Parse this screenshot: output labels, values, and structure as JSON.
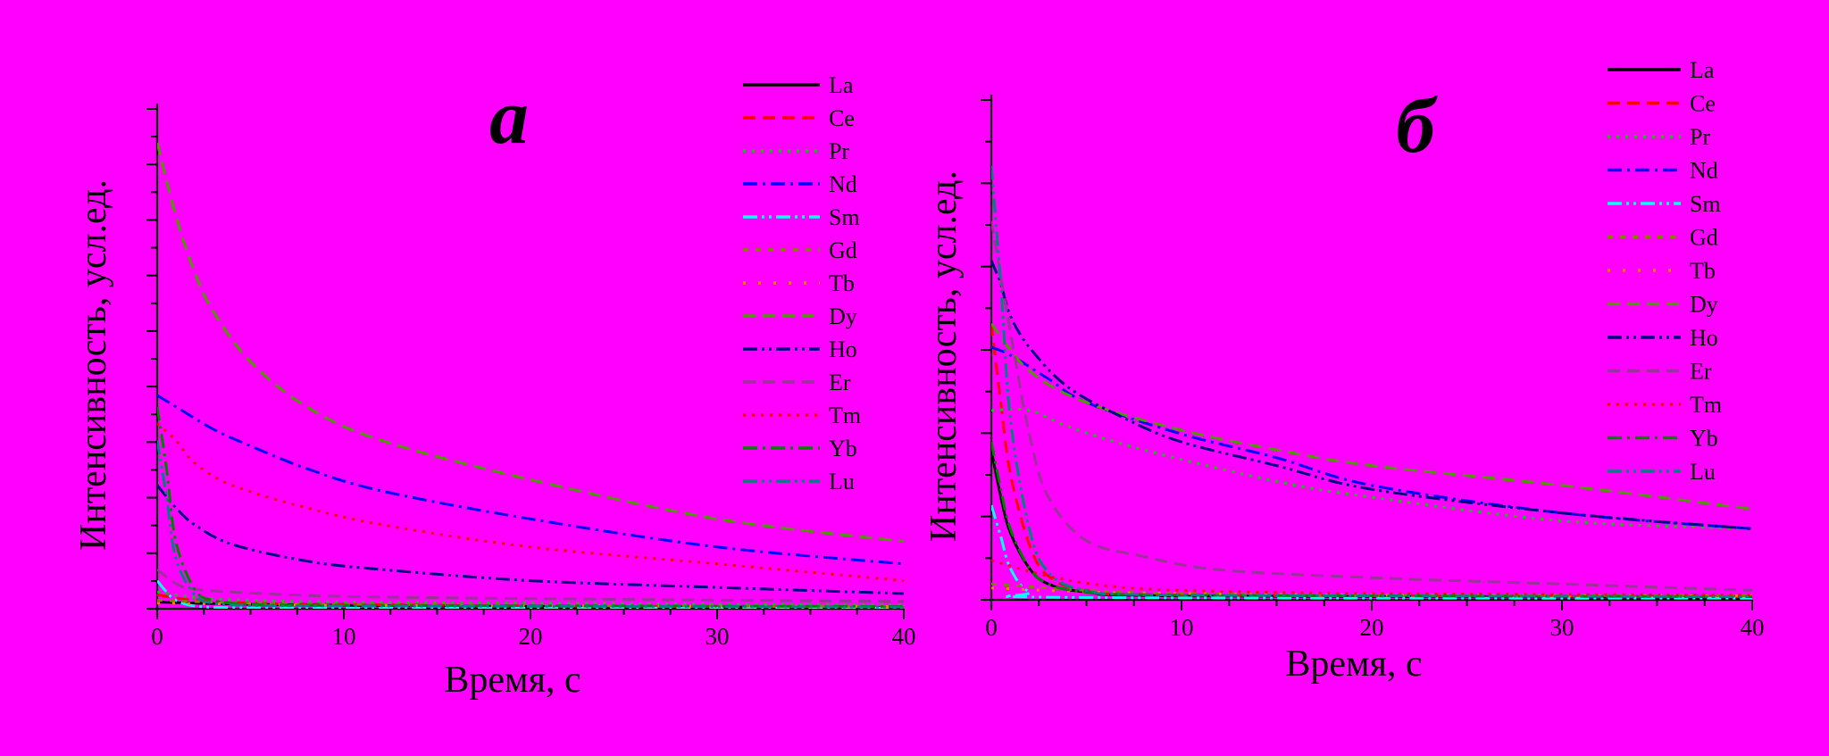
{
  "chart_data": [
    {
      "type": "line",
      "panel_label": "а",
      "xlabel": "Время, с",
      "ylabel": "Интенсивность, усл.ед.",
      "xlim": [
        0,
        40
      ],
      "ylim": [
        0,
        9
      ],
      "xticks": [
        0,
        10,
        20,
        30,
        40
      ],
      "y_major_count": 9,
      "legend_position": "right",
      "series": [
        {
          "name": "La",
          "color": "#000000",
          "dash": "solid",
          "values": [
            [
              0,
              0.12
            ],
            [
              2,
              0.1
            ],
            [
              5,
              0.08
            ],
            [
              10,
              0.06
            ],
            [
              20,
              0.04
            ],
            [
              30,
              0.03
            ],
            [
              40,
              0.02
            ]
          ]
        },
        {
          "name": "Ce",
          "color": "#FF0000",
          "dash": "dash",
          "values": [
            [
              0,
              0.25
            ],
            [
              2,
              0.15
            ],
            [
              5,
              0.1
            ],
            [
              10,
              0.08
            ],
            [
              20,
              0.05
            ],
            [
              30,
              0.04
            ],
            [
              40,
              0.03
            ]
          ]
        },
        {
          "name": "Pr",
          "color": "#00CC00",
          "dash": "dot",
          "values": [
            [
              0,
              0.3
            ],
            [
              2,
              0.2
            ],
            [
              5,
              0.15
            ],
            [
              10,
              0.12
            ],
            [
              20,
              0.1
            ],
            [
              30,
              0.08
            ],
            [
              40,
              0.06
            ]
          ]
        },
        {
          "name": "Nd",
          "color": "#0000FF",
          "dash": "dashdot",
          "values": [
            [
              0,
              3.8
            ],
            [
              1,
              3.6
            ],
            [
              3,
              3.2
            ],
            [
              5,
              2.9
            ],
            [
              8,
              2.5
            ],
            [
              12,
              2.1
            ],
            [
              20,
              1.6
            ],
            [
              30,
              1.1
            ],
            [
              40,
              0.8
            ]
          ]
        },
        {
          "name": "Sm",
          "color": "#00FFFF",
          "dash": "dashdotdot",
          "values": [
            [
              0,
              0.5
            ],
            [
              0.5,
              0.3
            ],
            [
              1,
              0.15
            ],
            [
              2,
              0.05
            ],
            [
              4,
              0.02
            ],
            [
              10,
              0.01
            ],
            [
              40,
              0.01
            ]
          ]
        },
        {
          "name": "Gd",
          "color": "#808000",
          "dash": "shortdash",
          "values": [
            [
              0,
              0.15
            ],
            [
              5,
              0.1
            ],
            [
              10,
              0.08
            ],
            [
              20,
              0.06
            ],
            [
              40,
              0.04
            ]
          ]
        },
        {
          "name": "Tb",
          "color": "#FF8000",
          "dash": "sparsedot",
          "values": [
            [
              0,
              0.1
            ],
            [
              5,
              0.08
            ],
            [
              10,
              0.06
            ],
            [
              20,
              0.05
            ],
            [
              40,
              0.04
            ]
          ]
        },
        {
          "name": "Dy",
          "color": "#4C9900",
          "dash": "dash",
          "values": [
            [
              0,
              8.3
            ],
            [
              1,
              7.0
            ],
            [
              2,
              6.0
            ],
            [
              3,
              5.3
            ],
            [
              5,
              4.4
            ],
            [
              8,
              3.6
            ],
            [
              12,
              3.0
            ],
            [
              20,
              2.3
            ],
            [
              30,
              1.6
            ],
            [
              40,
              1.2
            ]
          ]
        },
        {
          "name": "Ho",
          "color": "#000080",
          "dash": "dashdotdot",
          "values": [
            [
              0,
              2.2
            ],
            [
              1,
              1.8
            ],
            [
              2,
              1.5
            ],
            [
              4,
              1.15
            ],
            [
              8,
              0.85
            ],
            [
              12,
              0.7
            ],
            [
              20,
              0.5
            ],
            [
              30,
              0.38
            ],
            [
              40,
              0.27
            ]
          ]
        },
        {
          "name": "Er",
          "color": "#993399",
          "dash": "dash",
          "values": [
            [
              0,
              0.7
            ],
            [
              1,
              0.45
            ],
            [
              2,
              0.35
            ],
            [
              5,
              0.28
            ],
            [
              10,
              0.22
            ],
            [
              20,
              0.18
            ],
            [
              40,
              0.13
            ]
          ]
        },
        {
          "name": "Tm",
          "color": "#FF0000",
          "dash": "dot",
          "values": [
            [
              0,
              3.3
            ],
            [
              1,
              3.0
            ],
            [
              2,
              2.6
            ],
            [
              4,
              2.2
            ],
            [
              8,
              1.8
            ],
            [
              12,
              1.5
            ],
            [
              20,
              1.1
            ],
            [
              30,
              0.8
            ],
            [
              40,
              0.5
            ]
          ]
        },
        {
          "name": "Yb",
          "color": "#008000",
          "dash": "dashdot",
          "values": [
            [
              0,
              3.6
            ],
            [
              0.5,
              2.5
            ],
            [
              1,
              1.2
            ],
            [
              2,
              0.35
            ],
            [
              3,
              0.15
            ],
            [
              5,
              0.08
            ],
            [
              10,
              0.06
            ],
            [
              40,
              0.04
            ]
          ]
        },
        {
          "name": "Lu",
          "color": "#008080",
          "dash": "dashdotdot",
          "values": [
            [
              0,
              3.0
            ],
            [
              0.5,
              2.0
            ],
            [
              1,
              0.9
            ],
            [
              2,
              0.25
            ],
            [
              3,
              0.1
            ],
            [
              5,
              0.06
            ],
            [
              10,
              0.05
            ],
            [
              40,
              0.03
            ]
          ]
        }
      ]
    },
    {
      "type": "line",
      "panel_label": "б",
      "xlabel": "Время, с",
      "ylabel": "Интенсивность, усл.ед.",
      "xlim": [
        0,
        40
      ],
      "ylim": [
        0,
        6.4
      ],
      "xticks": [
        0,
        10,
        20,
        30,
        40
      ],
      "y_major_count": 6,
      "legend_position": "right",
      "series": [
        {
          "name": "La",
          "color": "#000000",
          "dash": "solid",
          "values": [
            [
              0,
              1.9
            ],
            [
              0.5,
              1.3
            ],
            [
              1,
              0.85
            ],
            [
              2,
              0.4
            ],
            [
              3,
              0.2
            ],
            [
              5,
              0.1
            ],
            [
              10,
              0.05
            ],
            [
              40,
              0.03
            ]
          ]
        },
        {
          "name": "Ce",
          "color": "#FF0000",
          "dash": "dash",
          "values": [
            [
              0,
              3.5
            ],
            [
              0.5,
              2.5
            ],
            [
              1,
              1.6
            ],
            [
              2,
              0.7
            ],
            [
              3,
              0.3
            ],
            [
              5,
              0.12
            ],
            [
              10,
              0.06
            ],
            [
              40,
              0.04
            ]
          ]
        },
        {
          "name": "Pr",
          "color": "#00CC00",
          "dash": "dot",
          "values": [
            [
              0,
              2.4
            ],
            [
              2,
              2.4
            ],
            [
              4,
              2.2
            ],
            [
              8,
              1.9
            ],
            [
              15,
              1.5
            ],
            [
              20,
              1.3
            ],
            [
              30,
              1.0
            ],
            [
              40,
              0.9
            ]
          ]
        },
        {
          "name": "Nd",
          "color": "#0000FF",
          "dash": "dashdot",
          "values": [
            [
              0,
              3.2
            ],
            [
              1,
              3.1
            ],
            [
              3,
              2.8
            ],
            [
              5,
              2.5
            ],
            [
              10,
              2.1
            ],
            [
              15,
              1.8
            ],
            [
              20,
              1.45
            ],
            [
              30,
              1.1
            ],
            [
              40,
              0.9
            ]
          ]
        },
        {
          "name": "Sm",
          "color": "#00FFFF",
          "dash": "dashdotdot",
          "values": [
            [
              0,
              1.2
            ],
            [
              0.5,
              0.8
            ],
            [
              1,
              0.4
            ],
            [
              2,
              0.1
            ],
            [
              4,
              0.03
            ],
            [
              40,
              0.02
            ]
          ]
        },
        {
          "name": "Gd",
          "color": "#808000",
          "dash": "shortdash",
          "values": [
            [
              0,
              0.2
            ],
            [
              5,
              0.12
            ],
            [
              10,
              0.08
            ],
            [
              20,
              0.06
            ],
            [
              40,
              0.05
            ]
          ]
        },
        {
          "name": "Tb",
          "color": "#FF8000",
          "dash": "sparsedot",
          "values": [
            [
              0,
              0.15
            ],
            [
              5,
              0.1
            ],
            [
              10,
              0.08
            ],
            [
              20,
              0.06
            ],
            [
              40,
              0.05
            ]
          ]
        },
        {
          "name": "Dy",
          "color": "#4C9900",
          "dash": "dash",
          "values": [
            [
              0,
              3.5
            ],
            [
              2,
              2.9
            ],
            [
              5,
              2.5
            ],
            [
              10,
              2.15
            ],
            [
              15,
              1.9
            ],
            [
              20,
              1.7
            ],
            [
              30,
              1.45
            ],
            [
              40,
              1.15
            ]
          ]
        },
        {
          "name": "Ho",
          "color": "#000080",
          "dash": "dashdotdot",
          "values": [
            [
              0,
              4.3
            ],
            [
              0.5,
              4.0
            ],
            [
              1,
              3.6
            ],
            [
              2,
              3.2
            ],
            [
              4,
              2.7
            ],
            [
              7,
              2.3
            ],
            [
              10,
              2.0
            ],
            [
              15,
              1.7
            ],
            [
              20,
              1.4
            ],
            [
              30,
              1.1
            ],
            [
              40,
              0.9
            ]
          ]
        },
        {
          "name": "Er",
          "color": "#993399",
          "dash": "dash",
          "values": [
            [
              0,
              4.8
            ],
            [
              1,
              3.4
            ],
            [
              2,
              2.1
            ],
            [
              3,
              1.3
            ],
            [
              5,
              0.75
            ],
            [
              8,
              0.55
            ],
            [
              12,
              0.38
            ],
            [
              20,
              0.28
            ],
            [
              30,
              0.2
            ],
            [
              40,
              0.12
            ]
          ]
        },
        {
          "name": "Tm",
          "color": "#FF0000",
          "dash": "dot",
          "values": [
            [
              0,
              0.5
            ],
            [
              3,
              0.3
            ],
            [
              6,
              0.18
            ],
            [
              10,
              0.12
            ],
            [
              20,
              0.08
            ],
            [
              40,
              0.06
            ]
          ]
        },
        {
          "name": "Yb",
          "color": "#008000",
          "dash": "dashdot",
          "values": [
            [
              0,
              2.0
            ],
            [
              0.5,
              1.4
            ],
            [
              1,
              0.9
            ],
            [
              2,
              0.4
            ],
            [
              3,
              0.2
            ],
            [
              5,
              0.1
            ],
            [
              10,
              0.06
            ],
            [
              40,
              0.04
            ]
          ]
        },
        {
          "name": "Lu",
          "color": "#008080",
          "dash": "dashdotdot",
          "values": [
            [
              0,
              5.5
            ],
            [
              0.5,
              4.0
            ],
            [
              1,
              2.3
            ],
            [
              2,
              0.9
            ],
            [
              3,
              0.35
            ],
            [
              5,
              0.12
            ],
            [
              10,
              0.06
            ],
            [
              40,
              0.04
            ]
          ]
        }
      ]
    }
  ]
}
